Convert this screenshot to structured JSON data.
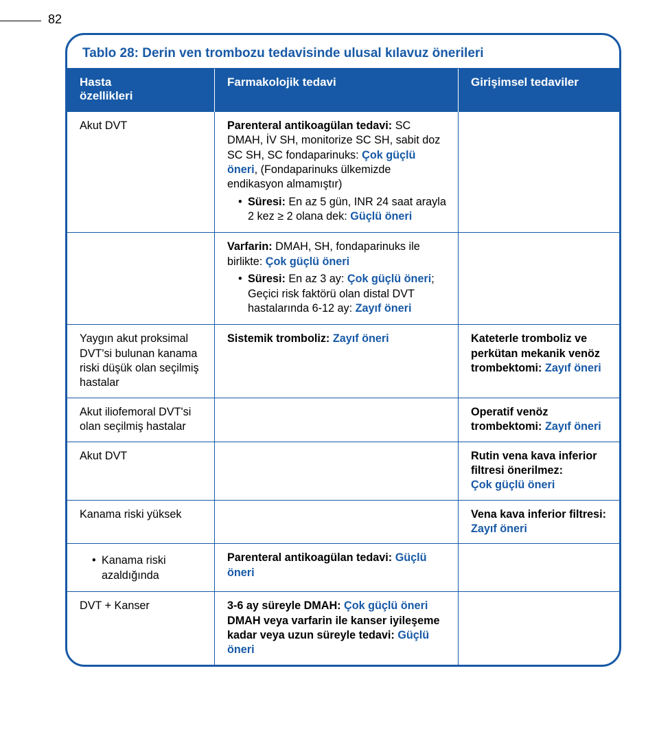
{
  "page_number": "82",
  "colors": {
    "primary": "#1759a6",
    "text": "#000000",
    "white": "#ffffff"
  },
  "title": "Tablo 28: Derin ven trombozu tedavisinde ulusal kılavuz önerileri",
  "headers": {
    "col1_line1": "Hasta",
    "col1_line2": "özellikleri",
    "col2": "Farmakolojik tedavi",
    "col3": "Girişimsel tedaviler"
  },
  "rows": {
    "r1": {
      "c1": "Akut DVT",
      "c2_p1_a": "Parenteral antikoagülan tedavi:",
      "c2_p1_b": " SC DMAH, İV SH, monitorize SC SH, sabit doz SC SH, SC fondaparinuks: ",
      "c2_p1_c": "Çok güçlü öneri",
      "c2_p1_d": ", (Fondaparinuks ülkemizde endikasyon almamıştır)",
      "c2_b1_a": "Süresi:",
      "c2_b1_b": " En az 5 gün, INR 24 saat arayla 2 kez ≥ 2 olana dek: ",
      "c2_b1_c": "Güçlü öneri"
    },
    "r2": {
      "c2_p1_a": "Varfarin:",
      "c2_p1_b": " DMAH, SH, fondaparinuks ile birlikte: ",
      "c2_p1_c": "Çok güçlü öneri",
      "c2_b1_a": "Süresi:",
      "c2_b1_b": " En az 3 ay: ",
      "c2_b1_c": "Çok güçlü öneri",
      "c2_b1_d": "; Geçici risk faktörü olan distal DVT hastalarında 6-12 ay: ",
      "c2_b1_e": "Zayıf öneri"
    },
    "r3": {
      "c1": "Yaygın akut proksimal DVT'si bulunan kanama riski düşük olan seçilmiş hastalar",
      "c2_a": "Sistemik tromboliz: ",
      "c2_b": "Zayıf öneri",
      "c3_a": "Kateterle tromboliz ve perkütan mekanik venöz trombektomi: ",
      "c3_b": "Zayıf öneri"
    },
    "r4": {
      "c1": "Akut iliofemoral DVT'si olan seçilmiş hastalar",
      "c3_a": "Operatif venöz trombektomi: ",
      "c3_b": "Zayıf öneri"
    },
    "r5": {
      "c1": "Akut DVT",
      "c3_a": "Rutin vena kava inferior filtresi önerilmez:",
      "c3_b": "Çok güçlü öneri"
    },
    "r6": {
      "c1": "Kanama riski yüksek",
      "c3_a": "Vena kava inferior filtresi: ",
      "c3_b": "Zayıf öneri"
    },
    "r7": {
      "c1": "Kanama riski azaldığında",
      "c2_a": "Parenteral antikoagülan tedavi: ",
      "c2_b": "Güçlü öneri"
    },
    "r8": {
      "c1": "DVT + Kanser",
      "c2_a": "3-6 ay süreyle DMAH: ",
      "c2_b": "Çok güçlü öneri",
      "c2_c": "DMAH veya varfarin ile kanser iyileşeme kadar veya uzun süreyle tedavi: ",
      "c2_d": "Güçlü öneri"
    }
  }
}
